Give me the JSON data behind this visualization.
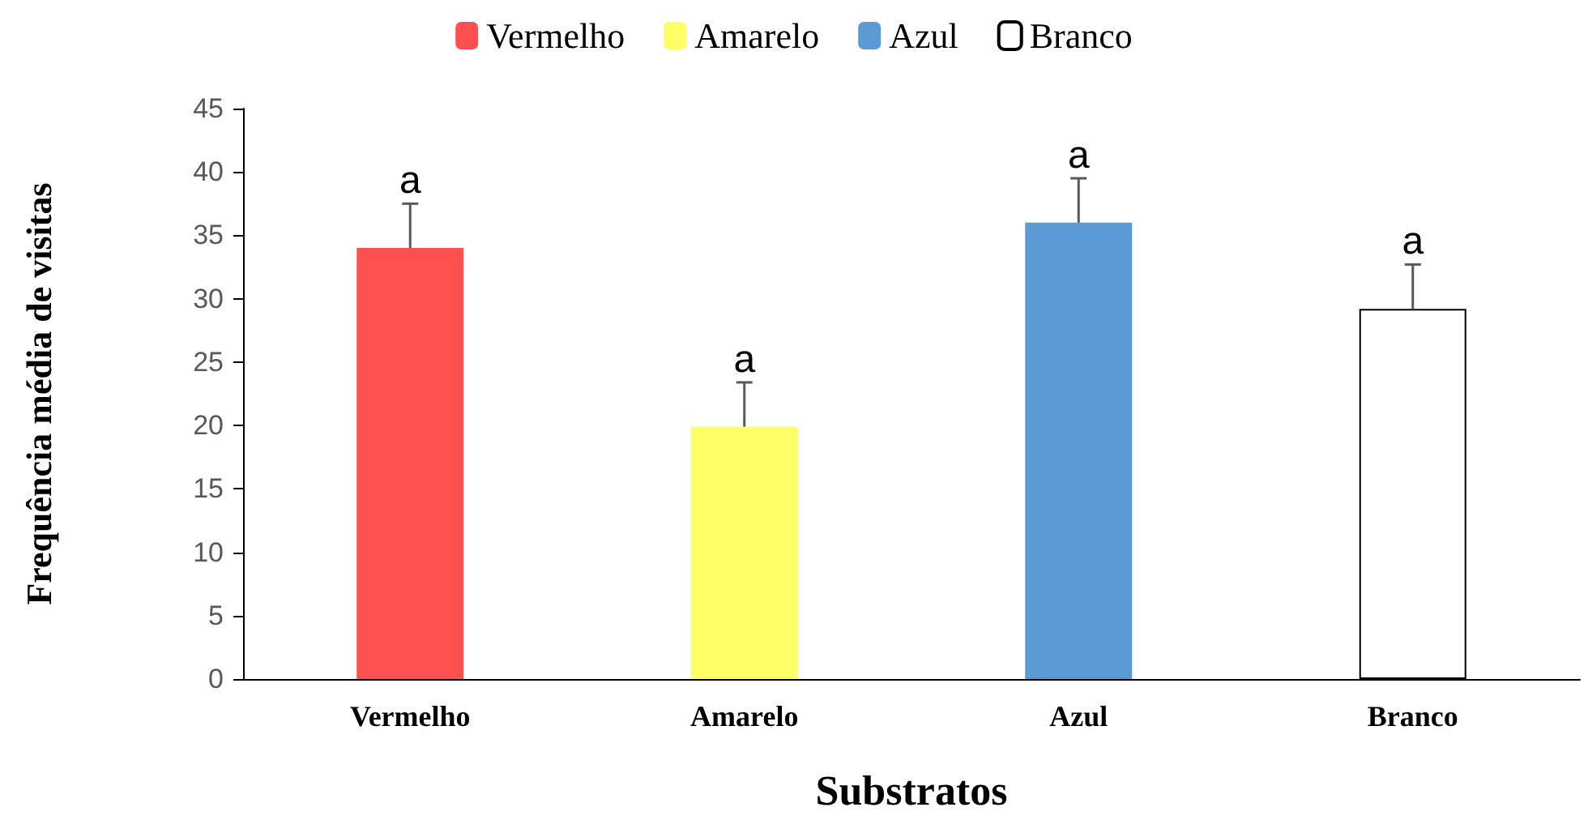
{
  "chart_data": {
    "type": "bar",
    "xlabel": "Substratos",
    "ylabel": "Frequência média de visitas",
    "categories": [
      "Vermelho",
      "Amarelo",
      "Azul",
      "Branco"
    ],
    "series": [
      {
        "name": "Vermelho",
        "color": "#ff5050",
        "values": [
          34,
          null,
          null,
          null
        ],
        "errors": [
          [
            34,
            37.5
          ],
          null,
          null,
          null
        ]
      },
      {
        "name": "Amarelo",
        "color": "#ffff66",
        "values": [
          null,
          19.9,
          null,
          null
        ],
        "errors": [
          null,
          [
            19.9,
            23.4
          ],
          null,
          null
        ]
      },
      {
        "name": "Azul",
        "color": "#5b9bd5",
        "values": [
          null,
          null,
          36,
          null
        ],
        "errors": [
          null,
          null,
          [
            36,
            39.5
          ],
          null
        ]
      },
      {
        "name": "Branco",
        "color": "#ffffff",
        "values": [
          null,
          null,
          null,
          29.2
        ],
        "errors": [
          null,
          null,
          null,
          [
            29.2,
            32.7
          ]
        ]
      }
    ],
    "ylim": [
      0,
      45
    ],
    "yticks": [
      0,
      5,
      10,
      15,
      20,
      25,
      30,
      35,
      40,
      45
    ],
    "grid": false,
    "legend": "top",
    "annotations": [
      {
        "text": "a",
        "x": "Vermelho",
        "y": 37.5
      },
      {
        "text": "a",
        "x": "Amarelo",
        "y": 23.4
      },
      {
        "text": "a",
        "x": "Azul",
        "y": 39.5
      },
      {
        "text": "a",
        "x": "Branco",
        "y": 32.7
      }
    ]
  }
}
